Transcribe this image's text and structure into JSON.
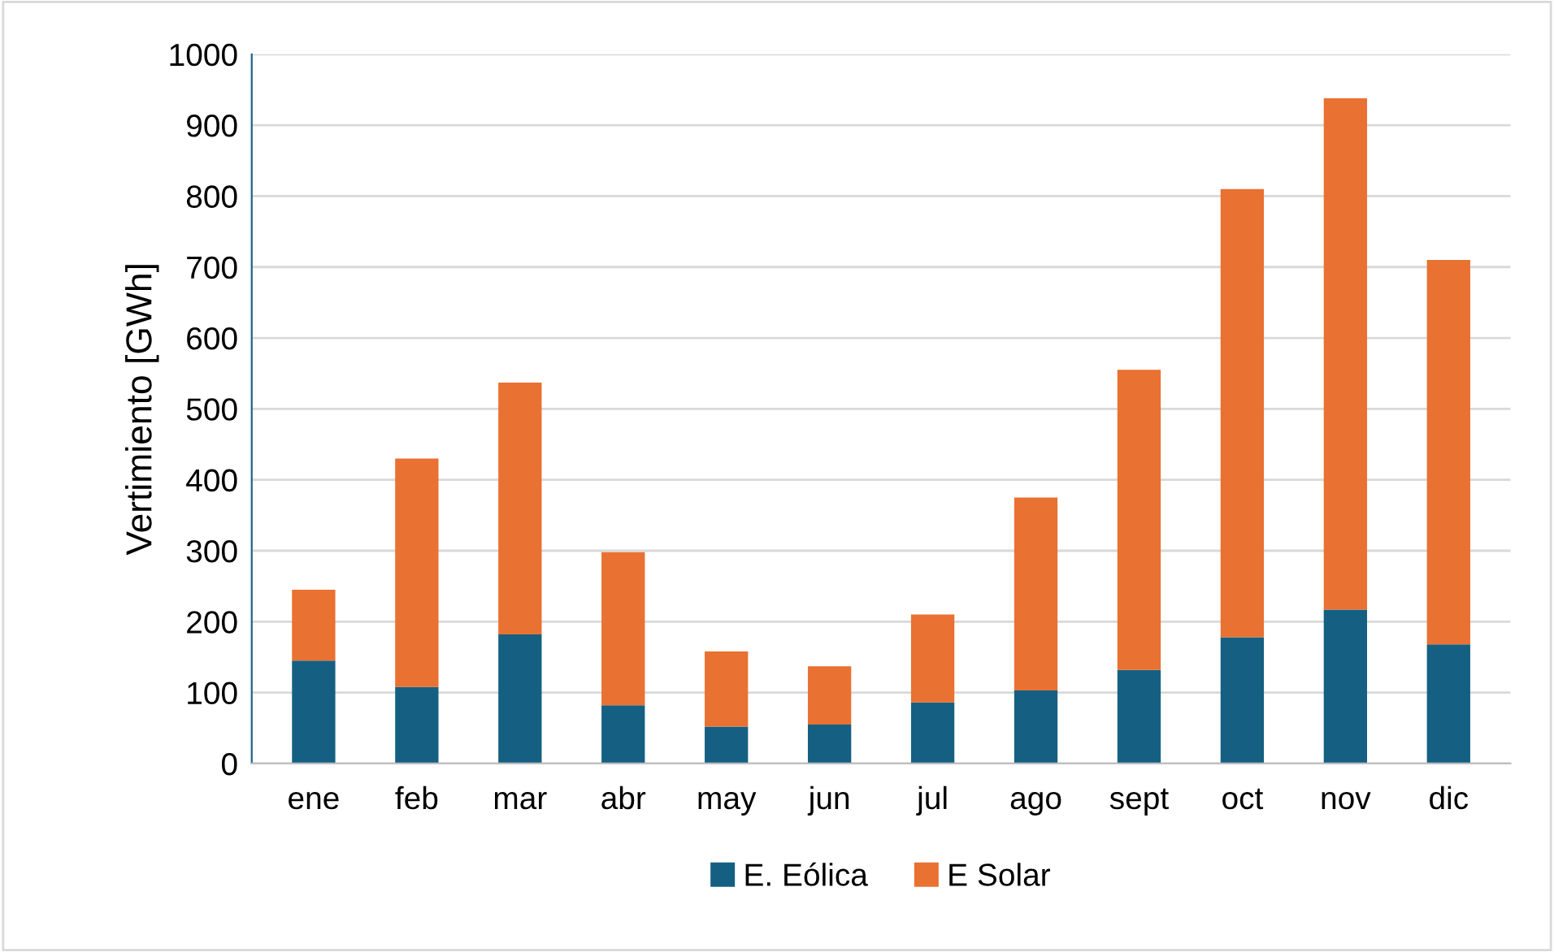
{
  "chart_data": {
    "type": "bar",
    "stacked": true,
    "ylabel": "Vertimiento [GWh]",
    "categories": [
      "ene",
      "feb",
      "mar",
      "abr",
      "may",
      "jun",
      "jul",
      "ago",
      "sept",
      "oct",
      "nov",
      "dic"
    ],
    "series": [
      {
        "name": "E. Eólica",
        "color": "#156082",
        "values": [
          145,
          108,
          182,
          82,
          52,
          55,
          86,
          103,
          132,
          178,
          217,
          168
        ]
      },
      {
        "name": "E Solar",
        "color": "#e97132",
        "values": [
          100,
          322,
          355,
          216,
          106,
          82,
          124,
          272,
          423,
          632,
          721,
          542
        ]
      }
    ],
    "ylim": [
      0,
      1000
    ],
    "yticks": [
      0,
      100,
      200,
      300,
      400,
      500,
      600,
      700,
      800,
      900,
      1000
    ],
    "grid": "y",
    "legend": "bottom"
  }
}
